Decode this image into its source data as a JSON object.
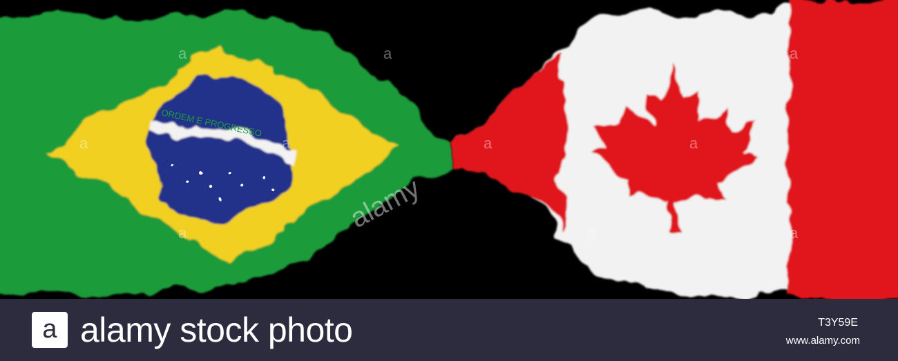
{
  "photo": {
    "left_flag": "Brazil",
    "right_flag": "Canada",
    "brazil_motto": "ORDEM E PROGRESSO",
    "watermark": "alamy",
    "watermark_letter": "a"
  },
  "footer": {
    "logo_letter": "a",
    "brand": "alamy stock photo",
    "image_id": "T3Y59E",
    "url": "www.alamy.com"
  },
  "colors": {
    "brazil_green": "#1e9b3a",
    "brazil_yellow": "#f2d024",
    "brazil_blue": "#22338a",
    "canada_red": "#e0161b",
    "canada_white": "#f2f2f2",
    "footer_bg": "#2c2c3e"
  }
}
